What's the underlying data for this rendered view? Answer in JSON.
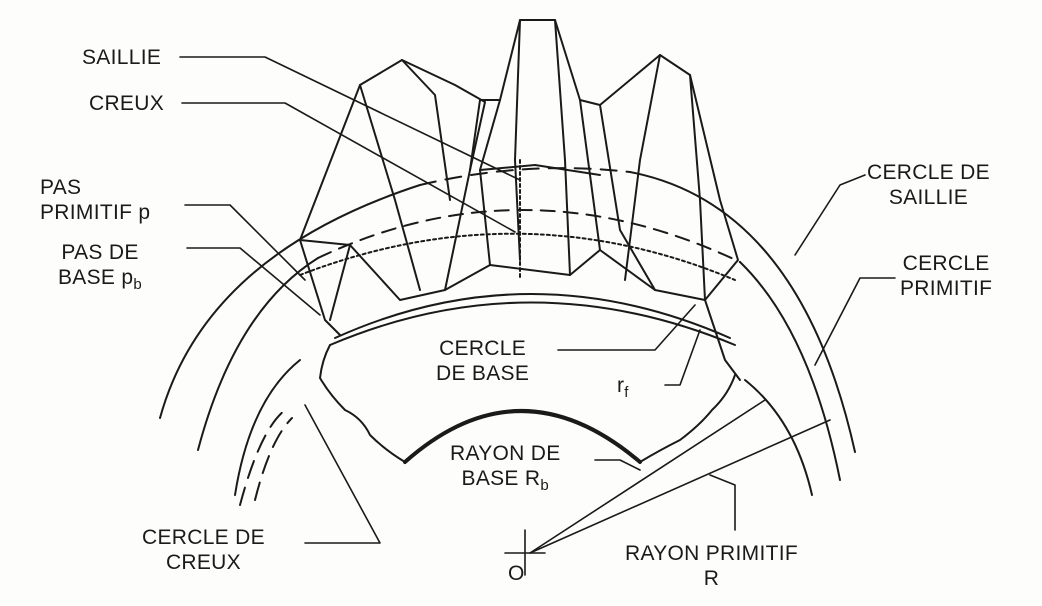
{
  "labels": {
    "saillie": "SAILLIE",
    "creux": "CREUX",
    "pas_primitif": "PAS\nPRIMITIF p",
    "pas_de_base": "PAS DE\nBASE p",
    "pas_de_base_sub": "b",
    "cercle_de_saillie": "CERCLE DE\nSAILLIE",
    "cercle_primitif": "CERCLE\nPRIMITIF",
    "cercle_de_base": "CERCLE\nDE BASE",
    "rayon_conge": "r",
    "rayon_conge_sub": "f",
    "rayon_de_base": "RAYON DE\nBASE R",
    "rayon_de_base_sub": "b",
    "cercle_de_creux": "CERCLE DE\nCREUX",
    "rayon_primitif": "RAYON PRIMITIF\nR",
    "origin": "O"
  }
}
